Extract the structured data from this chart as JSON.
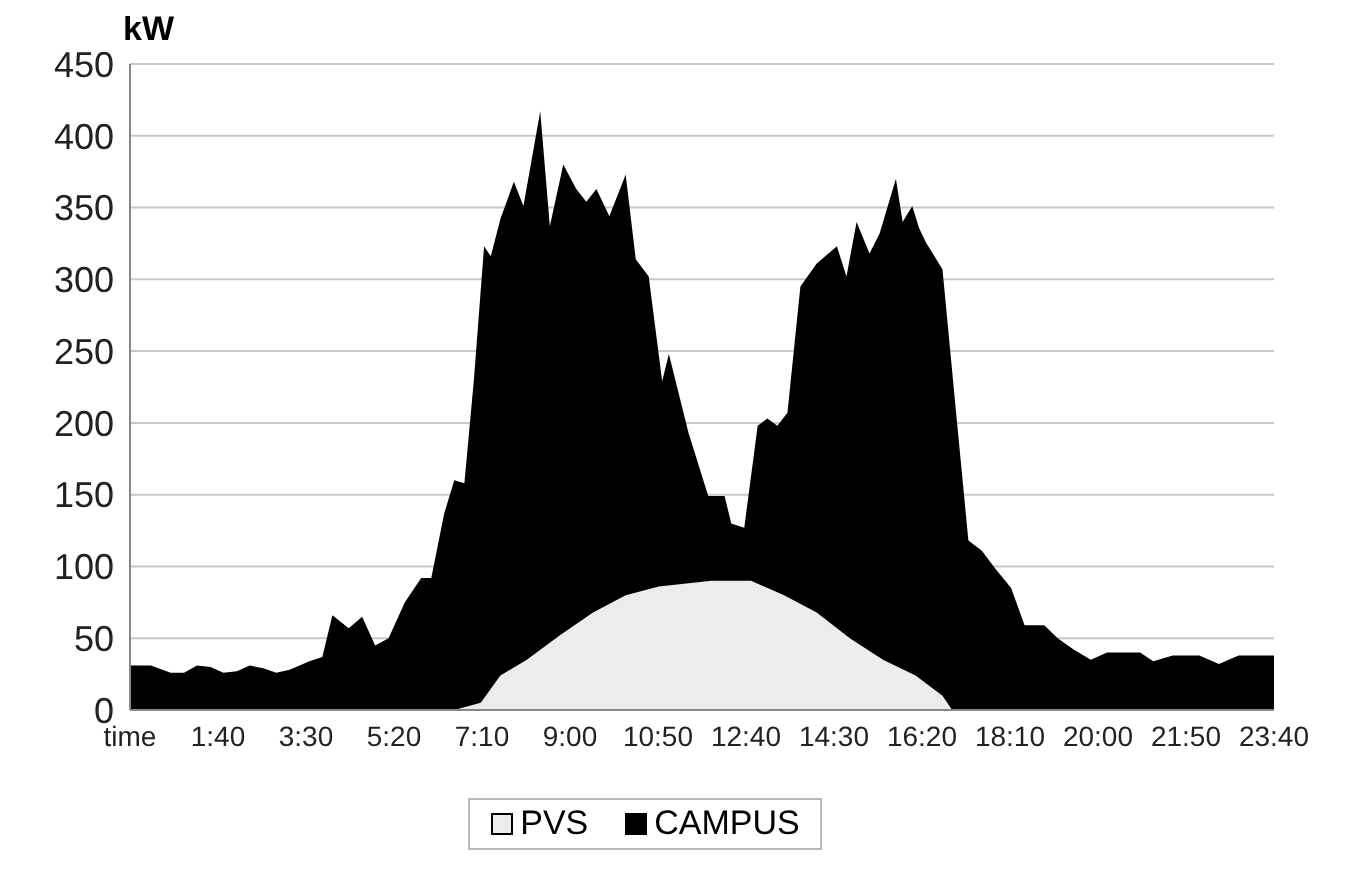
{
  "chart_data": {
    "type": "area",
    "ylabel": "kW",
    "legend": "bottom",
    "grid": "y",
    "xlim": [
      -0.1667,
      23.6667
    ],
    "xticks": [
      {
        "value": -0.1667,
        "label": "time"
      },
      {
        "value": 1.6667,
        "label": "1:40"
      },
      {
        "value": 3.5,
        "label": "3:30"
      },
      {
        "value": 5.3333,
        "label": "5:20"
      },
      {
        "value": 7.1667,
        "label": "7:10"
      },
      {
        "value": 9,
        "label": "9:00"
      },
      {
        "value": 10.8333,
        "label": "10:50"
      },
      {
        "value": 12.6667,
        "label": "12:40"
      },
      {
        "value": 14.5,
        "label": "14:30"
      },
      {
        "value": 16.3333,
        "label": "16:20"
      },
      {
        "value": 18.1667,
        "label": "18:10"
      },
      {
        "value": 20,
        "label": "20:00"
      },
      {
        "value": 21.8333,
        "label": "21:50"
      },
      {
        "value": 23.6667,
        "label": "23:40"
      }
    ],
    "ylim": [
      0,
      450
    ],
    "yticks": [
      0,
      50,
      100,
      150,
      200,
      250,
      300,
      350,
      400,
      450
    ],
    "series": [
      {
        "name": "CAMPUS",
        "color": "#000000",
        "x": [
          -0.1667,
          0.27,
          0.68,
          0.96,
          1.23,
          1.51,
          1.78,
          2.06,
          2.33,
          2.61,
          2.88,
          3.16,
          3.57,
          3.84,
          4.05,
          4.39,
          4.67,
          4.94,
          5.22,
          5.56,
          5.9,
          6.11,
          6.38,
          6.59,
          6.8,
          7.0,
          7.21,
          7.35,
          7.55,
          7.83,
          8.03,
          8.38,
          8.58,
          8.86,
          9.13,
          9.34,
          9.55,
          9.82,
          10.16,
          10.37,
          10.64,
          10.92,
          11.06,
          11.47,
          11.88,
          12.22,
          12.36,
          12.63,
          12.91,
          13.11,
          13.32,
          13.53,
          13.8,
          14.14,
          14.56,
          14.76,
          14.97,
          15.24,
          15.45,
          15.79,
          15.93,
          16.13,
          16.27,
          16.41,
          16.76,
          17.03,
          17.3,
          17.58,
          17.85,
          18.19,
          18.47,
          18.88,
          19.16,
          19.5,
          19.85,
          20.19,
          20.88,
          21.15,
          21.56,
          22.11,
          22.52,
          22.93,
          23.35,
          23.6667
        ],
        "values": [
          31,
          31,
          26,
          26,
          31,
          30,
          26,
          27,
          31,
          29,
          26,
          28,
          34,
          37,
          66,
          57,
          65,
          45,
          50,
          75,
          92,
          92,
          137,
          160,
          158,
          231,
          323,
          316,
          342,
          368,
          351,
          417,
          337,
          380,
          363,
          354,
          363,
          344,
          373,
          314,
          302,
          229,
          248,
          193,
          149,
          149,
          130,
          127,
          198,
          203,
          198,
          207,
          295,
          311,
          323,
          302,
          340,
          318,
          332,
          370,
          340,
          351,
          336,
          326,
          307,
          212,
          118,
          111,
          99,
          85,
          59,
          59,
          50,
          42,
          35,
          40,
          40,
          34,
          38,
          38,
          32,
          38,
          38,
          38
        ]
      },
      {
        "name": "PVS",
        "color": "#ececec",
        "x": [
          6.59,
          7.14,
          7.55,
          8.1,
          8.79,
          9.48,
          10.16,
          10.85,
          11.95,
          12.77,
          13.46,
          14.14,
          14.83,
          15.52,
          16.2,
          16.76,
          16.96
        ],
        "values": [
          0,
          5,
          24,
          35,
          52,
          68,
          80,
          86,
          90,
          90,
          80,
          68,
          50,
          35,
          24,
          10,
          0
        ]
      }
    ]
  }
}
